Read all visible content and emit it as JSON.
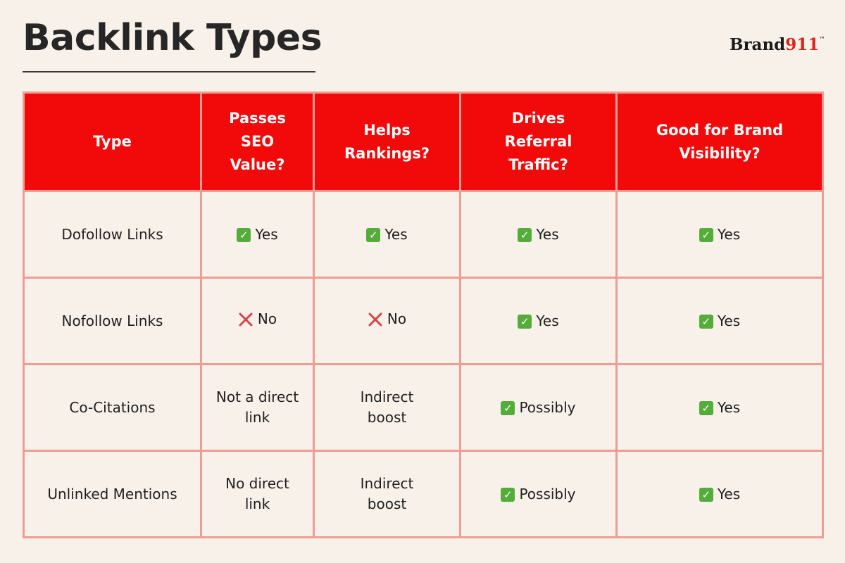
{
  "title": "Backlink Types",
  "logo": {
    "text": "Brand",
    "number": "911",
    "mark": "™"
  },
  "colors": {
    "header_bg": "#f20a0a",
    "grid_border": "#ee9d95",
    "page_bg": "#f8f1ea",
    "check_green": "#54ad3a",
    "cross_red": "#d64545"
  },
  "table": {
    "headers": [
      "Type",
      "Passes SEO Value?",
      "Helps Rankings?",
      "Drives Referral Traffic?",
      "Good for Brand Visibility?"
    ],
    "rows": [
      {
        "type": "Dofollow Links",
        "cells": [
          {
            "icon": "check-icon",
            "text": "Yes"
          },
          {
            "icon": "check-icon",
            "text": "Yes"
          },
          {
            "icon": "check-icon",
            "text": "Yes"
          },
          {
            "icon": "check-icon",
            "text": "Yes"
          }
        ]
      },
      {
        "type": "Nofollow Links",
        "cells": [
          {
            "icon": "cross-icon",
            "text": "No"
          },
          {
            "icon": "cross-icon",
            "text": "No"
          },
          {
            "icon": "check-icon",
            "text": "Yes"
          },
          {
            "icon": "check-icon",
            "text": "Yes"
          }
        ]
      },
      {
        "type": "Co-Citations",
        "cells": [
          {
            "icon": "",
            "text": "Not a direct link"
          },
          {
            "icon": "",
            "text": "Indirect boost"
          },
          {
            "icon": "check-icon",
            "text": "Possibly"
          },
          {
            "icon": "check-icon",
            "text": "Yes"
          }
        ]
      },
      {
        "type": "Unlinked Mentions",
        "cells": [
          {
            "icon": "",
            "text": "No direct link"
          },
          {
            "icon": "",
            "text": "Indirect boost"
          },
          {
            "icon": "check-icon",
            "text": "Possibly"
          },
          {
            "icon": "check-icon",
            "text": "Yes"
          }
        ]
      }
    ]
  }
}
